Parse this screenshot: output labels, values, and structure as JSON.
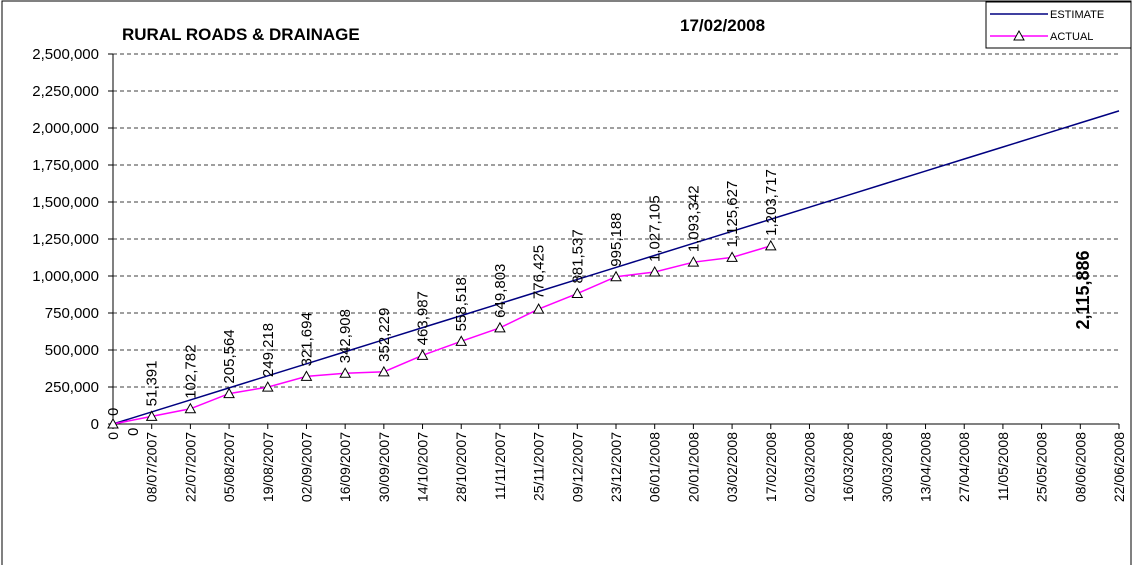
{
  "chart_data": {
    "type": "line",
    "title": "RURAL ROADS & DRAINAGE",
    "subtitle": "17/02/2008",
    "categories": [
      "0",
      "08/07/2007",
      "22/07/2007",
      "05/08/2007",
      "19/08/2007",
      "02/09/2007",
      "16/09/2007",
      "30/09/2007",
      "14/10/2007",
      "28/10/2007",
      "11/11/2007",
      "25/11/2007",
      "09/12/2007",
      "23/12/2007",
      "06/01/2008",
      "20/01/2008",
      "03/02/2008",
      "17/02/2008",
      "02/03/2008",
      "16/03/2008",
      "30/03/2008",
      "13/04/2008",
      "27/04/2008",
      "11/05/2008",
      "25/05/2008",
      "08/06/2008",
      "22/06/2008"
    ],
    "series": [
      {
        "name": "ESTIMATE",
        "color": "#000080",
        "values": [
          0,
          81380,
          162761,
          244141,
          325521,
          406901,
          488282,
          569662,
          651042,
          732422,
          813802,
          895183,
          976563,
          1057943,
          1139323,
          1220704,
          1302084,
          1383464,
          1464844,
          1546225,
          1627605,
          1708985,
          1790365,
          1871746,
          1953126,
          2034506,
          2115886
        ],
        "value_labels": [
          "0",
          null,
          null,
          null,
          null,
          null,
          null,
          null,
          null,
          null,
          null,
          null,
          null,
          null,
          null,
          null,
          null,
          null,
          null,
          null,
          null,
          null,
          null,
          null,
          null,
          null,
          "2,115,886"
        ]
      },
      {
        "name": "ACTUAL",
        "color": "#ff00ff",
        "marker": "triangle",
        "values": [
          0,
          51391,
          102782,
          205564,
          249218,
          321694,
          342908,
          352229,
          463987,
          558518,
          649803,
          776425,
          881537,
          995188,
          1027105,
          1093342,
          1125627,
          1203717,
          null,
          null,
          null,
          null,
          null,
          null,
          null,
          null,
          null
        ],
        "value_labels": [
          "0",
          "51,391",
          "102,782",
          "205,564",
          "249,218",
          "321,694",
          "342,908",
          "352,229",
          "463,987",
          "558,518",
          "649,803",
          "776,425",
          "881,537",
          "995,188",
          "1,027,105",
          "1,093,342",
          "1,125,627",
          "1,203,717",
          null,
          null,
          null,
          null,
          null,
          null,
          null,
          null,
          null
        ]
      }
    ],
    "ylim": [
      0,
      2500000
    ],
    "yticks": [
      0,
      {
        "value": 250000,
        "label": "250,000"
      },
      {
        "value": 500000,
        "label": "500,000"
      },
      {
        "value": 750000,
        "label": "750,000"
      },
      {
        "value": 1000000,
        "label": "1,000,000"
      },
      {
        "value": 1250000,
        "label": "1,250,000"
      },
      {
        "value": 1500000,
        "label": "1,500,000"
      },
      {
        "value": 1750000,
        "label": "1,750,000"
      },
      {
        "value": 2000000,
        "label": "2,000,000"
      },
      {
        "value": 2250000,
        "label": "2,250,000"
      },
      {
        "value": 2500000,
        "label": "2,500,000"
      }
    ],
    "grid": true,
    "legend": "top-right"
  }
}
